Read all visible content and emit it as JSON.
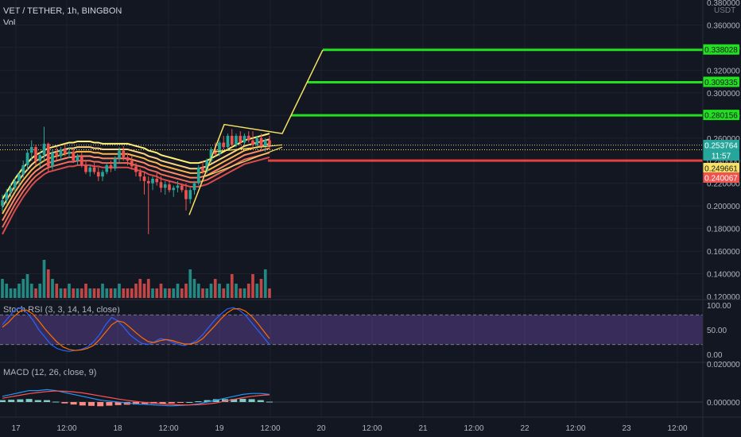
{
  "header": {
    "symbol": "VET / TETHER, 1h, BINGBON",
    "volume_label": "Vol",
    "currency": "USDT",
    "stoch_label": "Stoch RSI (3, 3, 14, 14, close)",
    "macd_label": "MACD (12, 26, close, 9)"
  },
  "colors": {
    "background": "#131722",
    "up": "#26a69a",
    "down": "#ef5350",
    "target_line": "#22e01f",
    "stop_line": "#e8413c",
    "current_price_line": "#c9c3a6",
    "projection": "#f6e163",
    "ribbon": [
      "#fff176",
      "#ffd180",
      "#ffb74d",
      "#ff8a65",
      "#ef6c5a",
      "#d84c4c"
    ],
    "stoch_k": "#2962ff",
    "stoch_d": "#ff6d00",
    "stoch_band": "#7e57c2",
    "macd_line": "#2196f3",
    "signal_line": "#ff5252",
    "hist_pos": "#80cbc4",
    "hist_neg": "#ff8a80"
  },
  "chart_data": [
    {
      "type": "candlestick",
      "pane": "price",
      "ylim": [
        0.12,
        0.38
      ],
      "y_ticks": [
        "0.360000",
        "0.340000",
        "0.320000",
        "0.300000",
        "0.280000",
        "0.260000",
        "0.240000",
        "0.220000",
        "0.200000",
        "0.180000",
        "0.160000",
        "0.140000",
        "0.120000",
        "0.380000"
      ],
      "y_tick_values": [
        0.36,
        0.34,
        0.32,
        0.3,
        0.28,
        0.26,
        0.24,
        0.22,
        0.2,
        0.18,
        0.16,
        0.14,
        0.12,
        0.38
      ],
      "x_ticks": [
        "17",
        "12:00",
        "18",
        "12:00",
        "19",
        "12:00",
        "20",
        "12:00",
        "21",
        "12:00",
        "22",
        "12:00",
        "23",
        "12:00"
      ],
      "price_labels": [
        {
          "text": "0.338028",
          "value": 0.338028,
          "kind": "target"
        },
        {
          "text": "0.309335",
          "value": 0.309335,
          "kind": "target"
        },
        {
          "text": "0.280156",
          "value": 0.280156,
          "kind": "target"
        },
        {
          "text": "0.253764",
          "value": 0.253764,
          "kind": "current"
        },
        {
          "text": "11:57",
          "value": 0.248,
          "kind": "countdown"
        },
        {
          "text": "0.249661",
          "value": 0.249661,
          "kind": "yellow"
        },
        {
          "text": "0.240067",
          "value": 0.240067,
          "kind": "stop"
        }
      ],
      "levels": [
        {
          "value": 0.338028,
          "kind": "target"
        },
        {
          "value": 0.309335,
          "kind": "target"
        },
        {
          "value": 0.280156,
          "kind": "target"
        },
        {
          "value": 0.253764,
          "kind": "current"
        },
        {
          "value": 0.249661,
          "kind": "yellow"
        },
        {
          "value": 0.240067,
          "kind": "stop"
        }
      ],
      "projection_path": [
        [
          0,
          0.192
        ],
        [
          0.2,
          0.272
        ],
        [
          0.45,
          0.264
        ],
        [
          0.66,
          0.28
        ],
        [
          0.86,
          0.309
        ],
        [
          1.0,
          0.338
        ]
      ],
      "ohlc": [
        [
          0.2,
          0.21,
          0.195,
          0.205
        ],
        [
          0.205,
          0.215,
          0.202,
          0.212
        ],
        [
          0.212,
          0.22,
          0.208,
          0.216
        ],
        [
          0.216,
          0.225,
          0.212,
          0.222
        ],
        [
          0.222,
          0.23,
          0.218,
          0.228
        ],
        [
          0.228,
          0.24,
          0.225,
          0.236
        ],
        [
          0.236,
          0.25,
          0.232,
          0.247
        ],
        [
          0.247,
          0.258,
          0.24,
          0.252
        ],
        [
          0.252,
          0.254,
          0.236,
          0.24
        ],
        [
          0.24,
          0.248,
          0.234,
          0.245
        ],
        [
          0.245,
          0.27,
          0.24,
          0.255
        ],
        [
          0.255,
          0.256,
          0.23,
          0.235
        ],
        [
          0.235,
          0.25,
          0.232,
          0.247
        ],
        [
          0.247,
          0.253,
          0.24,
          0.244
        ],
        [
          0.244,
          0.252,
          0.24,
          0.25
        ],
        [
          0.25,
          0.255,
          0.244,
          0.246
        ],
        [
          0.246,
          0.252,
          0.242,
          0.248
        ],
        [
          0.248,
          0.25,
          0.238,
          0.24
        ],
        [
          0.24,
          0.246,
          0.236,
          0.244
        ],
        [
          0.244,
          0.247,
          0.234,
          0.236
        ],
        [
          0.236,
          0.24,
          0.228,
          0.23
        ],
        [
          0.23,
          0.236,
          0.226,
          0.234
        ],
        [
          0.234,
          0.238,
          0.228,
          0.23
        ],
        [
          0.23,
          0.234,
          0.222,
          0.226
        ],
        [
          0.226,
          0.232,
          0.222,
          0.23
        ],
        [
          0.23,
          0.238,
          0.228,
          0.236
        ],
        [
          0.236,
          0.24,
          0.23,
          0.233
        ],
        [
          0.233,
          0.244,
          0.231,
          0.242
        ],
        [
          0.242,
          0.252,
          0.238,
          0.249
        ],
        [
          0.249,
          0.253,
          0.24,
          0.243
        ],
        [
          0.243,
          0.247,
          0.236,
          0.24
        ],
        [
          0.24,
          0.244,
          0.232,
          0.235
        ],
        [
          0.235,
          0.238,
          0.226,
          0.23
        ],
        [
          0.23,
          0.233,
          0.222,
          0.226
        ],
        [
          0.226,
          0.23,
          0.21,
          0.222
        ],
        [
          0.222,
          0.226,
          0.175,
          0.22
        ],
        [
          0.22,
          0.226,
          0.214,
          0.224
        ],
        [
          0.224,
          0.23,
          0.218,
          0.221
        ],
        [
          0.221,
          0.226,
          0.212,
          0.216
        ],
        [
          0.216,
          0.222,
          0.21,
          0.219
        ],
        [
          0.219,
          0.222,
          0.212,
          0.214
        ],
        [
          0.214,
          0.218,
          0.208,
          0.216
        ],
        [
          0.216,
          0.222,
          0.212,
          0.218
        ],
        [
          0.218,
          0.22,
          0.212,
          0.214
        ],
        [
          0.214,
          0.22,
          0.196,
          0.206
        ],
        [
          0.206,
          0.216,
          0.202,
          0.214
        ],
        [
          0.214,
          0.222,
          0.21,
          0.22
        ],
        [
          0.22,
          0.236,
          0.218,
          0.234
        ],
        [
          0.234,
          0.24,
          0.228,
          0.231
        ],
        [
          0.231,
          0.242,
          0.229,
          0.24
        ],
        [
          0.24,
          0.252,
          0.238,
          0.25
        ],
        [
          0.25,
          0.256,
          0.244,
          0.246
        ],
        [
          0.246,
          0.258,
          0.244,
          0.256
        ],
        [
          0.256,
          0.262,
          0.25,
          0.252
        ],
        [
          0.252,
          0.264,
          0.25,
          0.262
        ],
        [
          0.262,
          0.268,
          0.252,
          0.254
        ],
        [
          0.254,
          0.264,
          0.252,
          0.262
        ],
        [
          0.262,
          0.266,
          0.254,
          0.256
        ],
        [
          0.256,
          0.264,
          0.254,
          0.262
        ],
        [
          0.262,
          0.266,
          0.256,
          0.258
        ],
        [
          0.258,
          0.266,
          0.252,
          0.254
        ],
        [
          0.254,
          0.262,
          0.25,
          0.26
        ],
        [
          0.26,
          0.264,
          0.25,
          0.252
        ],
        [
          0.252,
          0.26,
          0.248,
          0.258
        ],
        [
          0.258,
          0.262,
          0.25,
          0.253
        ]
      ],
      "ribbon_base": [
        0.19,
        0.196,
        0.202,
        0.208,
        0.213,
        0.218,
        0.222,
        0.226,
        0.229,
        0.231,
        0.233,
        0.235,
        0.236,
        0.237,
        0.238,
        0.239,
        0.24,
        0.24,
        0.241,
        0.241,
        0.241,
        0.241,
        0.24,
        0.24,
        0.239,
        0.239,
        0.239,
        0.239,
        0.239,
        0.239,
        0.239,
        0.238,
        0.237,
        0.236,
        0.235,
        0.233,
        0.232,
        0.231,
        0.229,
        0.228,
        0.227,
        0.226,
        0.225,
        0.224,
        0.223,
        0.222,
        0.222,
        0.222,
        0.223,
        0.224,
        0.226,
        0.228,
        0.23,
        0.232,
        0.234,
        0.236,
        0.238,
        0.24,
        0.242,
        0.243,
        0.244,
        0.245,
        0.246,
        0.247,
        0.248
      ]
    },
    {
      "type": "bar",
      "pane": "volume",
      "name": "Vol",
      "values": [
        4,
        3,
        2,
        2,
        3,
        4,
        5,
        3,
        2,
        3,
        8,
        6,
        4,
        3,
        2,
        2,
        3,
        2,
        2,
        2,
        3,
        2,
        2,
        2,
        3,
        2,
        2,
        2,
        3,
        2,
        2,
        2,
        3,
        4,
        3,
        4,
        2,
        2,
        3,
        2,
        2,
        2,
        3,
        2,
        3,
        6,
        4,
        3,
        2,
        2,
        3,
        4,
        3,
        2,
        3,
        5,
        3,
        2,
        2,
        3,
        5,
        3,
        4,
        6,
        2
      ]
    },
    {
      "type": "line",
      "pane": "stoch_rsi",
      "ylim": [
        0,
        100
      ],
      "y_ticks": [
        "100.00",
        "50.00",
        "0.00"
      ],
      "y_tick_values": [
        100,
        50,
        0
      ],
      "band": [
        20,
        80
      ],
      "series": [
        {
          "name": "K",
          "values": [
            60,
            75,
            90,
            95,
            85,
            70,
            50,
            35,
            20,
            12,
            8,
            6,
            8,
            10,
            15,
            25,
            40,
            60,
            75,
            68,
            55,
            40,
            30,
            22,
            20,
            25,
            32,
            30,
            25,
            20,
            18,
            22,
            28,
            40,
            55,
            70,
            82,
            92,
            95,
            90,
            80,
            65,
            50,
            35,
            20
          ]
        },
        {
          "name": "D",
          "values": [
            55,
            65,
            78,
            88,
            90,
            82,
            68,
            52,
            38,
            25,
            15,
            10,
            8,
            9,
            12,
            18,
            30,
            45,
            60,
            68,
            65,
            55,
            44,
            34,
            26,
            24,
            28,
            30,
            28,
            24,
            21,
            21,
            24,
            32,
            45,
            58,
            72,
            84,
            92,
            93,
            88,
            78,
            64,
            48,
            32
          ]
        }
      ]
    },
    {
      "type": "bar",
      "pane": "macd",
      "ylim": [
        -0.004,
        0.02
      ],
      "y_ticks": [
        "0.020000",
        "0.000000"
      ],
      "y_tick_values": [
        0.02,
        0.0
      ],
      "series": [
        {
          "name": "MACD",
          "values": [
            0.003,
            0.004,
            0.005,
            0.006,
            0.006,
            0.0065,
            0.006,
            0.005,
            0.004,
            0.003,
            0.002,
            0.001,
            0.0005,
            0.0,
            -0.0005,
            -0.001,
            -0.0012,
            -0.0015,
            -0.0018,
            -0.002,
            -0.0018,
            -0.0015,
            -0.001,
            0.0,
            0.001,
            0.002,
            0.003,
            0.004,
            0.0045,
            0.0045,
            0.004
          ]
        },
        {
          "name": "Signal",
          "values": [
            0.002,
            0.0028,
            0.0036,
            0.0044,
            0.005,
            0.0055,
            0.0058,
            0.0057,
            0.0053,
            0.0048,
            0.004,
            0.0032,
            0.0024,
            0.0016,
            0.0009,
            0.0003,
            -0.0002,
            -0.0006,
            -0.001,
            -0.0013,
            -0.0015,
            -0.0015,
            -0.0014,
            -0.001,
            -0.0005,
            0.0005,
            0.0014,
            0.0023,
            0.003,
            0.0035,
            0.0038
          ]
        }
      ],
      "histogram": [
        0.001,
        0.0012,
        0.0014,
        0.0016,
        0.001,
        0.001,
        0.0002,
        -0.0007,
        -0.0013,
        -0.0018,
        -0.002,
        -0.0022,
        -0.0019,
        -0.0016,
        -0.0014,
        -0.0013,
        -0.001,
        -0.0009,
        -0.0008,
        -0.0007,
        -0.0003,
        0.0,
        0.0004,
        0.001,
        0.0015,
        0.0015,
        0.0016,
        0.0017,
        0.0015,
        0.001,
        0.0002
      ]
    }
  ]
}
